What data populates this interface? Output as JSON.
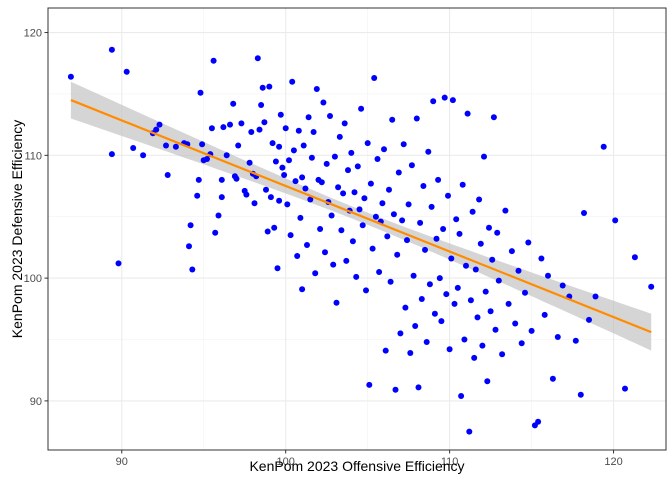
{
  "chart_data": {
    "type": "scatter",
    "xlabel": "KenPom 2023 Offensive Efficiency",
    "ylabel": "KenPom 2023 Defensive Efficiency",
    "xlim": [
      85.5,
      123.2
    ],
    "ylim": [
      86.0,
      122.0
    ],
    "x_ticks": [
      "90",
      "100",
      "110",
      "120"
    ],
    "y_ticks": [
      "90",
      "100",
      "110",
      "120"
    ],
    "grid": true,
    "theme": "bw",
    "point_color": "#0000FF",
    "line_color": "#FF8C00",
    "band_color": "#BEBEBE",
    "fit": {
      "method": "lm",
      "x": [
        86.9,
        122.3
      ],
      "y": [
        114.5,
        95.6
      ],
      "se_halfwidth_ends": 1.5
    },
    "points": [
      [
        86.9,
        116.4
      ],
      [
        89.4,
        118.6
      ],
      [
        90.3,
        116.8
      ],
      [
        89.4,
        110.1
      ],
      [
        89.8,
        101.2
      ],
      [
        90.7,
        110.6
      ],
      [
        91.3,
        110.0
      ],
      [
        91.9,
        111.8
      ],
      [
        92.3,
        112.5
      ],
      [
        92.1,
        112.1
      ],
      [
        92.7,
        110.8
      ],
      [
        92.8,
        108.4
      ],
      [
        93.3,
        110.7
      ],
      [
        93.8,
        111.0
      ],
      [
        94.0,
        110.9
      ],
      [
        94.2,
        104.3
      ],
      [
        94.1,
        102.6
      ],
      [
        94.3,
        100.7
      ],
      [
        94.6,
        106.7
      ],
      [
        94.7,
        108.0
      ],
      [
        94.8,
        115.1
      ],
      [
        94.9,
        110.9
      ],
      [
        95.0,
        109.6
      ],
      [
        95.2,
        109.7
      ],
      [
        95.4,
        110.1
      ],
      [
        95.5,
        112.2
      ],
      [
        95.6,
        117.7
      ],
      [
        95.7,
        103.7
      ],
      [
        95.9,
        105.1
      ],
      [
        96.1,
        108.0
      ],
      [
        96.1,
        106.6
      ],
      [
        96.2,
        112.3
      ],
      [
        96.4,
        110.0
      ],
      [
        96.6,
        112.5
      ],
      [
        96.8,
        114.2
      ],
      [
        96.9,
        108.3
      ],
      [
        97.0,
        108.1
      ],
      [
        97.1,
        110.8
      ],
      [
        97.3,
        112.6
      ],
      [
        97.5,
        107.1
      ],
      [
        97.6,
        106.8
      ],
      [
        97.8,
        109.4
      ],
      [
        97.9,
        111.9
      ],
      [
        98.0,
        108.5
      ],
      [
        98.1,
        106.1
      ],
      [
        98.2,
        108.3
      ],
      [
        98.3,
        117.9
      ],
      [
        98.4,
        112.1
      ],
      [
        98.5,
        114.1
      ],
      [
        98.6,
        115.5
      ],
      [
        98.7,
        112.7
      ],
      [
        98.8,
        107.2
      ],
      [
        98.9,
        103.8
      ],
      [
        99.0,
        115.6
      ],
      [
        99.1,
        106.6
      ],
      [
        99.2,
        111.0
      ],
      [
        99.3,
        104.1
      ],
      [
        99.4,
        109.5
      ],
      [
        99.5,
        100.8
      ],
      [
        99.6,
        110.7
      ],
      [
        99.6,
        106.3
      ],
      [
        99.7,
        113.3
      ],
      [
        99.8,
        109.0
      ],
      [
        99.9,
        108.4
      ],
      [
        100.0,
        112.2
      ],
      [
        100.1,
        106.0
      ],
      [
        100.2,
        109.6
      ],
      [
        100.3,
        103.5
      ],
      [
        100.4,
        116.0
      ],
      [
        100.5,
        110.4
      ],
      [
        100.6,
        107.9
      ],
      [
        100.7,
        101.8
      ],
      [
        100.8,
        112.0
      ],
      [
        100.9,
        104.9
      ],
      [
        101.0,
        108.2
      ],
      [
        101.0,
        99.1
      ],
      [
        101.1,
        110.8
      ],
      [
        101.2,
        107.3
      ],
      [
        101.3,
        102.7
      ],
      [
        101.4,
        113.1
      ],
      [
        101.5,
        106.4
      ],
      [
        101.6,
        109.8
      ],
      [
        101.7,
        111.9
      ],
      [
        101.8,
        100.4
      ],
      [
        101.9,
        115.4
      ],
      [
        102.0,
        108.0
      ],
      [
        102.1,
        104.0
      ],
      [
        102.2,
        107.8
      ],
      [
        102.3,
        114.3
      ],
      [
        102.4,
        102.1
      ],
      [
        102.5,
        109.3
      ],
      [
        102.6,
        106.2
      ],
      [
        102.7,
        113.2
      ],
      [
        102.8,
        105.1
      ],
      [
        102.9,
        101.1
      ],
      [
        103.0,
        109.9
      ],
      [
        103.1,
        98.0
      ],
      [
        103.2,
        107.4
      ],
      [
        103.3,
        111.5
      ],
      [
        103.4,
        103.9
      ],
      [
        103.5,
        106.9
      ],
      [
        103.6,
        112.6
      ],
      [
        103.7,
        101.4
      ],
      [
        103.8,
        108.8
      ],
      [
        103.9,
        105.5
      ],
      [
        104.0,
        110.2
      ],
      [
        104.1,
        103.0
      ],
      [
        104.2,
        107.0
      ],
      [
        104.3,
        100.1
      ],
      [
        104.4,
        109.1
      ],
      [
        104.5,
        105.6
      ],
      [
        104.6,
        113.8
      ],
      [
        104.7,
        104.3
      ],
      [
        104.8,
        106.5
      ],
      [
        104.9,
        99.0
      ],
      [
        105.0,
        111.0
      ],
      [
        105.1,
        91.3
      ],
      [
        105.2,
        107.7
      ],
      [
        105.3,
        102.4
      ],
      [
        105.4,
        116.3
      ],
      [
        105.5,
        105.0
      ],
      [
        105.6,
        109.7
      ],
      [
        105.7,
        100.5
      ],
      [
        105.8,
        104.6
      ],
      [
        105.9,
        106.1
      ],
      [
        106.0,
        110.5
      ],
      [
        106.1,
        94.1
      ],
      [
        106.2,
        103.4
      ],
      [
        106.3,
        107.2
      ],
      [
        106.4,
        99.7
      ],
      [
        106.5,
        112.9
      ],
      [
        106.6,
        105.2
      ],
      [
        106.7,
        90.9
      ],
      [
        106.8,
        101.9
      ],
      [
        106.9,
        108.6
      ],
      [
        107.0,
        95.5
      ],
      [
        107.1,
        104.7
      ],
      [
        107.2,
        110.9
      ],
      [
        107.3,
        97.6
      ],
      [
        107.4,
        103.1
      ],
      [
        107.5,
        106.0
      ],
      [
        107.6,
        93.9
      ],
      [
        107.7,
        109.2
      ],
      [
        107.8,
        100.2
      ],
      [
        107.9,
        96.1
      ],
      [
        108.0,
        113.0
      ],
      [
        108.1,
        91.1
      ],
      [
        108.2,
        104.5
      ],
      [
        108.3,
        98.3
      ],
      [
        108.4,
        107.5
      ],
      [
        108.5,
        102.3
      ],
      [
        108.6,
        94.8
      ],
      [
        108.7,
        110.3
      ],
      [
        108.8,
        99.5
      ],
      [
        108.9,
        105.8
      ],
      [
        109.0,
        114.4
      ],
      [
        109.1,
        97.1
      ],
      [
        109.2,
        103.2
      ],
      [
        109.3,
        108.0
      ],
      [
        109.4,
        100.0
      ],
      [
        109.5,
        96.5
      ],
      [
        109.6,
        104.0
      ],
      [
        109.7,
        114.7
      ],
      [
        109.8,
        98.7
      ],
      [
        109.9,
        106.7
      ],
      [
        110.0,
        94.2
      ],
      [
        110.1,
        101.6
      ],
      [
        110.2,
        114.5
      ],
      [
        110.3,
        97.9
      ],
      [
        110.4,
        104.8
      ],
      [
        110.5,
        99.2
      ],
      [
        110.6,
        103.6
      ],
      [
        110.7,
        90.4
      ],
      [
        110.8,
        107.6
      ],
      [
        110.9,
        95.0
      ],
      [
        111.0,
        101.0
      ],
      [
        111.1,
        113.4
      ],
      [
        111.2,
        87.5
      ],
      [
        111.3,
        98.2
      ],
      [
        111.4,
        105.4
      ],
      [
        111.5,
        93.5
      ],
      [
        111.6,
        100.7
      ],
      [
        111.7,
        96.8
      ],
      [
        111.8,
        106.4
      ],
      [
        111.9,
        102.8
      ],
      [
        112.0,
        94.5
      ],
      [
        112.1,
        109.9
      ],
      [
        112.2,
        98.9
      ],
      [
        112.3,
        91.6
      ],
      [
        112.4,
        104.1
      ],
      [
        112.5,
        97.3
      ],
      [
        112.6,
        101.5
      ],
      [
        112.7,
        113.1
      ],
      [
        112.8,
        95.8
      ],
      [
        112.9,
        103.7
      ],
      [
        113.0,
        99.8
      ],
      [
        113.2,
        93.8
      ],
      [
        113.4,
        105.5
      ],
      [
        113.6,
        97.9
      ],
      [
        113.8,
        102.2
      ],
      [
        114.0,
        96.3
      ],
      [
        114.2,
        100.6
      ],
      [
        114.4,
        94.7
      ],
      [
        114.6,
        98.8
      ],
      [
        114.8,
        102.9
      ],
      [
        115.0,
        95.7
      ],
      [
        115.2,
        88.0
      ],
      [
        115.4,
        88.3
      ],
      [
        115.6,
        101.6
      ],
      [
        115.8,
        97.0
      ],
      [
        116.0,
        100.2
      ],
      [
        116.3,
        91.8
      ],
      [
        116.6,
        95.2
      ],
      [
        116.9,
        99.4
      ],
      [
        117.3,
        98.5
      ],
      [
        117.7,
        94.9
      ],
      [
        118.0,
        90.5
      ],
      [
        118.2,
        105.3
      ],
      [
        118.5,
        96.6
      ],
      [
        118.9,
        98.5
      ],
      [
        119.4,
        110.7
      ],
      [
        120.1,
        104.7
      ],
      [
        120.7,
        91.0
      ],
      [
        121.3,
        101.7
      ],
      [
        122.3,
        99.3
      ]
    ]
  }
}
